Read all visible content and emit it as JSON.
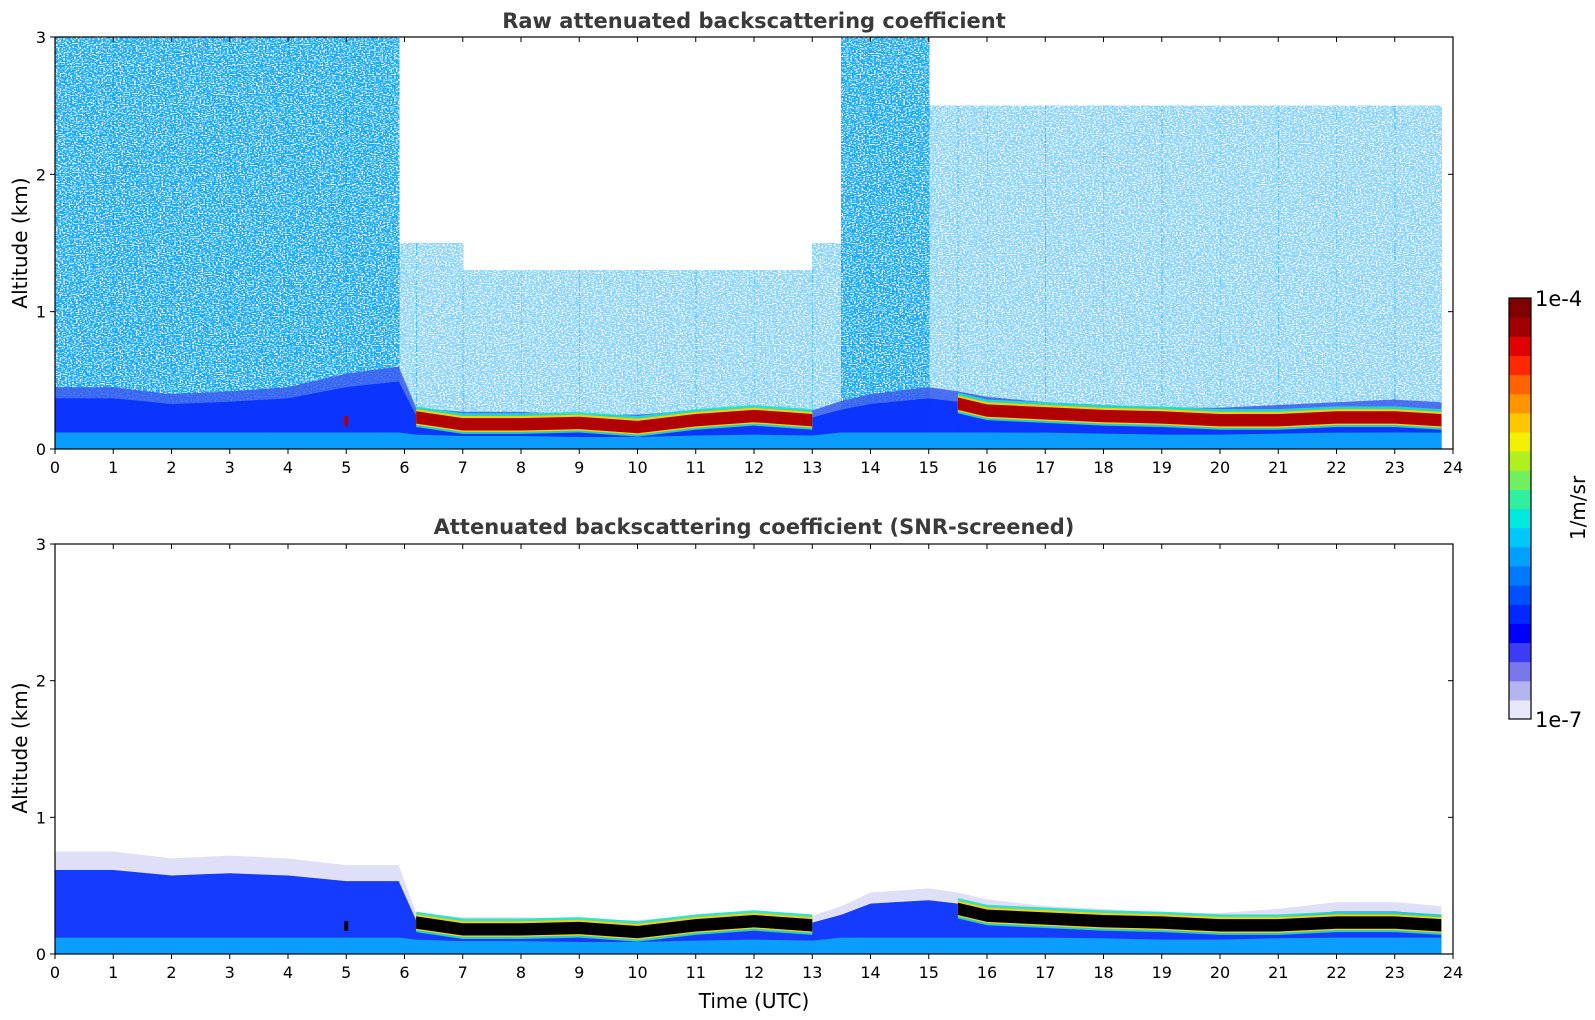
{
  "chart_data": [
    {
      "type": "heatmap",
      "title": "Raw attenuated backscattering coefficient",
      "xlabel": "",
      "ylabel": "Altitude (km)",
      "xlim": [
        0,
        24
      ],
      "ylim": [
        0,
        3
      ],
      "x_ticks": [
        "0",
        "1",
        "2",
        "3",
        "4",
        "5",
        "6",
        "7",
        "8",
        "9",
        "10",
        "11",
        "12",
        "13",
        "14",
        "15",
        "16",
        "17",
        "18",
        "19",
        "20",
        "21",
        "22",
        "23",
        "24"
      ],
      "y_ticks": [
        "0",
        "1",
        "2",
        "3"
      ],
      "x": [
        0,
        1,
        2,
        3,
        4,
        5,
        5.9,
        6.2,
        7,
        8,
        9,
        10,
        11,
        12,
        13,
        13.5,
        14,
        15,
        15.5,
        16,
        17,
        18,
        19,
        20,
        21,
        22,
        23,
        23.8
      ],
      "layer_top_km": [
        0.45,
        0.45,
        0.4,
        0.42,
        0.45,
        0.55,
        0.6,
        0.3,
        0.27,
        0.27,
        0.25,
        0.25,
        0.28,
        0.3,
        0.28,
        0.35,
        0.4,
        0.45,
        0.42,
        0.38,
        0.34,
        0.32,
        0.3,
        0.3,
        0.32,
        0.34,
        0.36,
        0.34
      ],
      "peak_alt_km": [
        null,
        null,
        null,
        null,
        null,
        0.2,
        null,
        0.22,
        0.17,
        0.17,
        0.18,
        0.15,
        0.2,
        0.23,
        0.2,
        null,
        null,
        null,
        0.32,
        0.27,
        0.25,
        0.23,
        0.22,
        0.2,
        0.2,
        0.22,
        0.22,
        0.2
      ],
      "noise_top_km": [
        3,
        3,
        3,
        3,
        3,
        3,
        3,
        1.5,
        1.5,
        1.3,
        1.3,
        1.3,
        1.3,
        1.3,
        1.5,
        3,
        3,
        3,
        2.5,
        2.5,
        2.5,
        2.5,
        2.5,
        2.5,
        2.5,
        2.5,
        2.5,
        2.5
      ]
    },
    {
      "type": "heatmap",
      "title": "Attenuated backscattering coefficient (SNR-screened)",
      "xlabel": "Time (UTC)",
      "ylabel": "Altitude (km)",
      "xlim": [
        0,
        24
      ],
      "ylim": [
        0,
        3
      ],
      "x_ticks": [
        "0",
        "1",
        "2",
        "3",
        "4",
        "5",
        "6",
        "7",
        "8",
        "9",
        "10",
        "11",
        "12",
        "13",
        "14",
        "15",
        "16",
        "17",
        "18",
        "19",
        "20",
        "21",
        "22",
        "23",
        "24"
      ],
      "y_ticks": [
        "0",
        "1",
        "2",
        "3"
      ],
      "x": [
        0,
        1,
        2,
        3,
        4,
        5,
        5.9,
        6.2,
        7,
        8,
        9,
        10,
        11,
        12,
        13,
        13.5,
        14,
        15,
        15.5,
        16,
        17,
        18,
        19,
        20,
        21,
        22,
        23,
        23.8
      ],
      "layer_top_km": [
        0.75,
        0.75,
        0.7,
        0.72,
        0.7,
        0.65,
        0.65,
        0.3,
        0.27,
        0.27,
        0.25,
        0.25,
        0.28,
        0.3,
        0.28,
        0.35,
        0.45,
        0.48,
        0.45,
        0.4,
        0.35,
        0.33,
        0.3,
        0.3,
        0.33,
        0.38,
        0.38,
        0.35
      ],
      "peak_alt_km": [
        null,
        null,
        null,
        null,
        null,
        0.2,
        null,
        0.22,
        0.17,
        0.17,
        0.18,
        0.15,
        0.2,
        0.23,
        0.2,
        null,
        null,
        null,
        0.32,
        0.27,
        0.25,
        0.23,
        0.22,
        0.2,
        0.2,
        0.22,
        0.22,
        0.2
      ]
    }
  ],
  "colorbar": {
    "max_label": "1e-4",
    "min_label": "1e-7",
    "unit_label": "1/m/sr",
    "scale": "log",
    "colors": [
      "#e8e8fa",
      "#b4b4f0",
      "#7878ec",
      "#3c3cf2",
      "#0000ff",
      "#0028ff",
      "#0050ff",
      "#0078ff",
      "#00a0ff",
      "#00c8ff",
      "#00e8e0",
      "#30f0a0",
      "#70f060",
      "#b0f020",
      "#f0f000",
      "#ffc800",
      "#ff9600",
      "#ff6400",
      "#ff2800",
      "#e00000",
      "#a00000",
      "#800000"
    ]
  }
}
